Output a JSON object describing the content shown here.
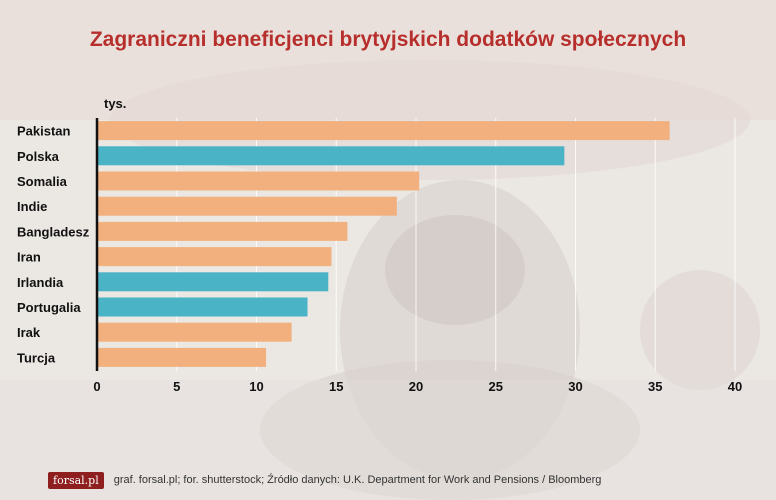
{
  "title": "Zagraniczni beneficjenci brytyjskich dodatków społecznych",
  "footer": {
    "logo_text": "forsal.pl",
    "source": "graf. forsal.pl; for. shutterstock;  Źródło danych:  U.K. Department for Work and Pensions / Bloomberg"
  },
  "colors": {
    "highlight": "#4ab4c6",
    "default": "#f2b07e",
    "title": "#b72f2c"
  },
  "chart_data": {
    "type": "bar",
    "orientation": "horizontal",
    "unit_label": "tys.",
    "categories": [
      "Pakistan",
      "Polska",
      "Somalia",
      "Indie",
      "Bangladesz",
      "Iran",
      "Irlandia",
      "Portugalia",
      "Irak",
      "Turcja"
    ],
    "values": [
      35.9,
      29.3,
      20.2,
      18.8,
      15.7,
      14.7,
      14.5,
      13.2,
      12.2,
      10.6
    ],
    "highlighted": [
      "Polska",
      "Irlandia",
      "Portugalia"
    ],
    "xticks": [
      0,
      5,
      10,
      15,
      20,
      25,
      30,
      35,
      40
    ],
    "xlim": [
      0,
      40
    ],
    "grid": true
  }
}
